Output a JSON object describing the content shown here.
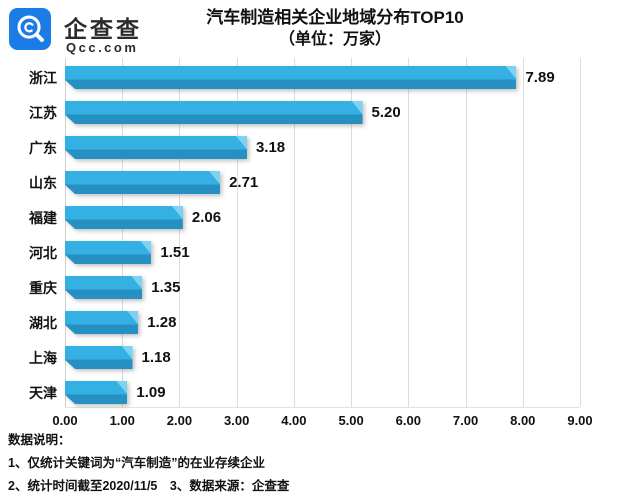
{
  "header": {
    "logo": {
      "name": "企查查",
      "domain": "Qcc.com",
      "brand_color": "#1b7ce5"
    },
    "title_line1": "汽车制造相关企业地域分布TOP10",
    "title_line2": "（单位：万家）"
  },
  "chart_data": {
    "type": "bar",
    "orientation": "horizontal",
    "title": "汽车制造相关企业地域分布TOP10",
    "subtitle": "（单位：万家）",
    "unit": "万家",
    "categories": [
      "浙江",
      "江苏",
      "广东",
      "山东",
      "福建",
      "河北",
      "重庆",
      "湖北",
      "上海",
      "天津"
    ],
    "values": [
      7.89,
      5.2,
      3.18,
      2.71,
      2.06,
      1.51,
      1.35,
      1.28,
      1.18,
      1.09
    ],
    "value_labels": [
      "7.89",
      "5.20",
      "3.18",
      "2.71",
      "2.06",
      "1.51",
      "1.35",
      "1.28",
      "1.18",
      "1.09"
    ],
    "x_ticks": [
      "0.00",
      "1.00",
      "2.00",
      "3.00",
      "4.00",
      "5.00",
      "6.00",
      "7.00",
      "8.00",
      "9.00"
    ],
    "xlim": [
      0,
      9
    ],
    "grid": true,
    "legend": false,
    "bar_color_top": "#35b0e3",
    "bar_color_bottom": "#2790c3",
    "bar_tip_highlight": "#7fd2f2",
    "gridline_color": "#dcdcdc"
  },
  "footer": {
    "heading": "数据说明：",
    "note1": "1、仅统计关键词为“汽车制造”的在业存续企业",
    "note2": "2、统计时间截至2020/11/5　3、数据来源：企查查"
  }
}
